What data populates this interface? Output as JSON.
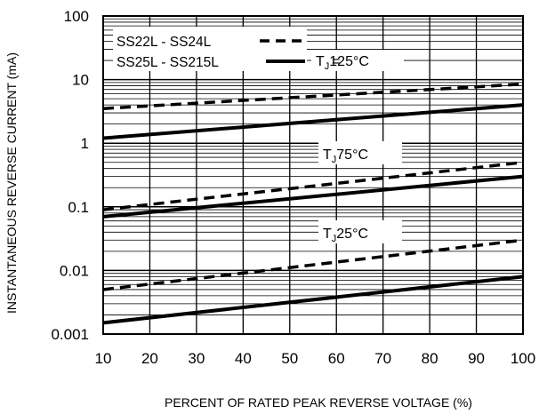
{
  "chart_data": {
    "type": "line",
    "title": "",
    "xlabel": "PERCENT OF RATED PEAK REVERSE VOLTAGE (%)",
    "ylabel": "INSTANTANEOUS REVERSE CURRENT (mA)",
    "x_scale": "linear",
    "y_scale": "log",
    "xlim": [
      10,
      100
    ],
    "ylim": [
      0.001,
      100
    ],
    "grid": true,
    "x_ticks": [
      "10",
      "20",
      "30",
      "40",
      "50",
      "60",
      "70",
      "80",
      "90",
      "100"
    ],
    "y_ticks": [
      "0.001",
      "0.01",
      "0.1",
      "1",
      "10",
      "100"
    ],
    "legend": {
      "position": "top-left",
      "entries": [
        {
          "label": "SS22L - SS24L",
          "style": "dashed"
        },
        {
          "label": "SS25L - SS215L",
          "style": "solid"
        }
      ]
    },
    "annotations": [
      {
        "label": "125°C",
        "x": 75,
        "y": 20
      },
      {
        "label": "75°C",
        "x": 72,
        "y": 0.9
      },
      {
        "label": "25°C",
        "x": 72,
        "y": 0.035
      }
    ],
    "series": [
      {
        "name": "SS22L - SS24L",
        "temperature": "125°C",
        "style": "dashed",
        "x": [
          10,
          100
        ],
        "y": [
          3.5,
          8.5
        ]
      },
      {
        "name": "SS25L - SS215L",
        "temperature": "125°C",
        "style": "solid",
        "x": [
          10,
          100
        ],
        "y": [
          1.2,
          4.0
        ]
      },
      {
        "name": "SS22L - SS24L",
        "temperature": "75°C",
        "style": "dashed",
        "x": [
          10,
          100
        ],
        "y": [
          0.09,
          0.5
        ]
      },
      {
        "name": "SS25L - SS215L",
        "temperature": "75°C",
        "style": "solid",
        "x": [
          10,
          100
        ],
        "y": [
          0.07,
          0.3
        ]
      },
      {
        "name": "SS22L - SS24L",
        "temperature": "25°C",
        "style": "dashed",
        "x": [
          10,
          100
        ],
        "y": [
          0.005,
          0.03
        ]
      },
      {
        "name": "SS25L - SS215L",
        "temperature": "25°C",
        "style": "solid",
        "x": [
          10,
          100
        ],
        "y": [
          0.0015,
          0.008
        ]
      }
    ]
  }
}
